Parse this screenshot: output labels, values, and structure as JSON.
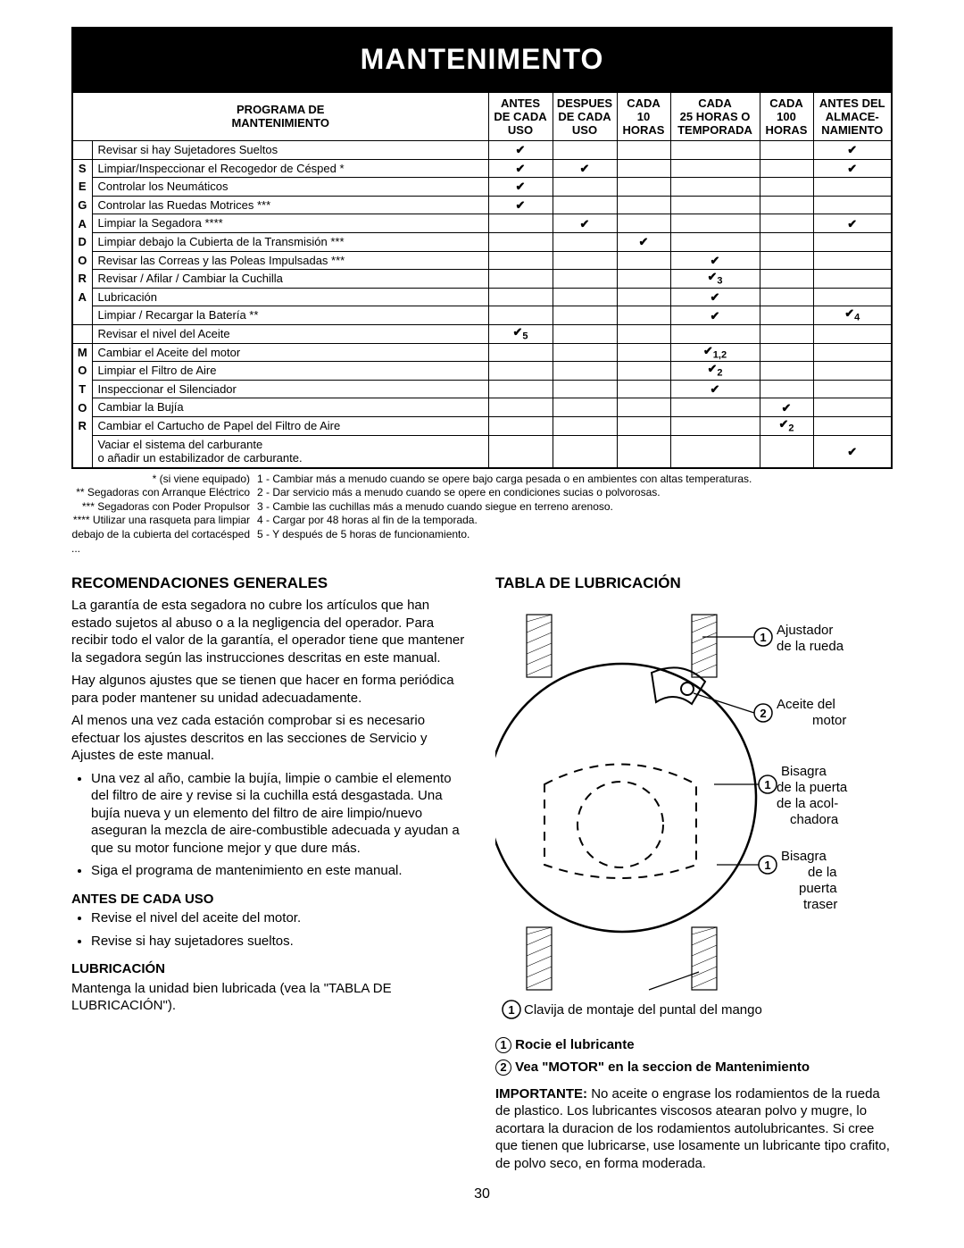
{
  "banner": "MANTENIMENTO",
  "table_title_l1": "PROGRAMA DE",
  "table_title_l2": "MANTENIMIENTO",
  "columns_hdr": [
    "ANTES\nDE CADA\nUSO",
    "DESPUES\nDE CADA\nUSO",
    "CADA\n10\nHORAS",
    "CADA\n25 HORAS O\nTEMPORADA",
    "CADA\n100\nHORAS",
    "ANTES DEL\nALMACE-\nNAMIENTO"
  ],
  "side_word1": "SEGADORA",
  "side_word2": "MOTOR",
  "rows": [
    {
      "task": "Revisar si hay Sujetadores Sueltos",
      "c": [
        1,
        0,
        0,
        0,
        0,
        1
      ]
    },
    {
      "task": "Limpiar/Inspeccionar el Recogedor de Césped *",
      "c": [
        1,
        1,
        0,
        0,
        0,
        1
      ]
    },
    {
      "task": "Controlar los Neumáticos",
      "c": [
        1,
        0,
        0,
        0,
        0,
        0
      ]
    },
    {
      "task": "Controlar las Ruedas Motrices ***",
      "c": [
        1,
        0,
        0,
        0,
        0,
        0
      ]
    },
    {
      "task": "Limpiar la Segadora ****",
      "c": [
        0,
        1,
        0,
        0,
        0,
        1
      ]
    },
    {
      "task": "Limpiar debajo la Cubierta de la Transmisión ***",
      "c": [
        0,
        0,
        1,
        0,
        0,
        0
      ]
    },
    {
      "task": "Revisar las Correas y las Poleas Impulsadas ***",
      "c": [
        0,
        0,
        0,
        1,
        0,
        0
      ]
    },
    {
      "task": "Revisar / Afilar / Cambiar la Cuchilla",
      "c": [
        0,
        0,
        0,
        "3",
        0,
        0
      ]
    },
    {
      "task": "Lubricación",
      "c": [
        0,
        0,
        0,
        1,
        0,
        0
      ]
    },
    {
      "task": "Limpiar / Recargar la Batería **",
      "c": [
        0,
        0,
        0,
        1,
        0,
        "4"
      ]
    },
    {
      "task": "Revisar el nivel del Aceite",
      "c": [
        "5",
        0,
        0,
        0,
        0,
        0
      ]
    },
    {
      "task": "Cambiar el Aceite del motor",
      "c": [
        0,
        0,
        0,
        "1,2",
        0,
        0
      ]
    },
    {
      "task": "Limpiar el Filtro de Aire",
      "c": [
        0,
        0,
        0,
        "2",
        0,
        0
      ]
    },
    {
      "task": "Inspeccionar el Silenciador",
      "c": [
        0,
        0,
        0,
        1,
        0,
        0
      ]
    },
    {
      "task": "Cambiar la Bujía",
      "c": [
        0,
        0,
        0,
        0,
        1,
        0
      ]
    },
    {
      "task": "Cambiar el Cartucho de Papel del Filtro de Aire",
      "c": [
        0,
        0,
        0,
        0,
        "2",
        0
      ]
    },
    {
      "task": "Vaciar el sistema del carburante\no añadir un estabilizador de carburante.",
      "c": [
        0,
        0,
        0,
        0,
        0,
        1
      ]
    }
  ],
  "footnotes_left": [
    "* (si viene equipado)",
    "** Segadoras con Arranque Eléctrico",
    "*** Segadoras con Poder Propulsor",
    "**** Utilizar una rasqueta para limpiar",
    "debajo de la cubierta del cortacésped"
  ],
  "footnotes_right": [
    "1 - Cambiar más a menudo cuando se opere bajo carga pesada o en ambientes con altas temperaturas.",
    "2 - Dar servicio más a menudo cuando se opere en condiciones sucias o polvorosas.",
    "3 - Cambie las cuchillas más a menudo cuando siegue en terreno arenoso.",
    "4 - Cargar por 48 horas al fin de la temporada.",
    "5 - Y después de 5 horas de funcionamiento."
  ],
  "left": {
    "h_rec": "RECOMENDACIONES GENERALES",
    "p1": "La garantía de esta segadora no cubre los artículos que han estado sujetos al abuso o a la negligencia del operador. Para recibir todo el valor de la garantía, el operador tiene que mantener la segadora según las instrucciones descritas en este manual.",
    "p2": "Hay algunos ajustes que se tienen que hacer en forma periódica para poder mantener su unidad adecuadamente.",
    "p3": "Al menos una vez cada estación comprobar si es necesario efectuar los ajustes descritos en las secciones de Servicio y Ajustes de este manual.",
    "li1": "Una vez al año, cambie la bujía, limpie o cambie el elemento del filtro de aire y revise si la cuchilla está desgastada. Una bujía nueva y un elemento del filtro de aire limpio/nuevo aseguran la mezcla de aire-combustible adecuada y ayudan a que su motor funcione mejor y que dure más.",
    "li2": "Siga el programa de mantenimiento en este manual.",
    "h_antes": "ANTES DE CADA USO",
    "antes_li1": "Revise el nivel del aceite del motor.",
    "antes_li2": "Revise si hay sujetadores sueltos.",
    "h_lub": "LUBRICACIÓN",
    "lub_p": "Mantenga la unidad bien lubricada (vea la \"TABLA DE LUBRICACIÓN\")."
  },
  "right": {
    "h_tab": "TABLA DE LUBRICACIÓN",
    "lbl1": "Ajustador de la rueda",
    "lbl2": "Aceite del motor",
    "lbl3": "Bisagra de la puerta de la acol-chadora",
    "lbl4": "Bisagra de la puerta traser",
    "lbl5": "Clavija de montaje del puntal del mango",
    "k1": "Rocie el lubricante",
    "k2": "Vea \"MOTOR\" en la seccion de Mantenimiento",
    "imp": "IMPORTANTE:",
    "imp_p": " No aceite o engrase los rodamientos de la rueda de plastico. Los lubricantes viscosos atearan polvo y mugre, lo acortara la duracion de los rodamientos autolubricantes. Si cree que tienen que lubricarse, use losamente un lubricante tipo crafito, de polvo seco, en forma moderada."
  },
  "pagenum": "30",
  "colors": {
    "black": "#000000",
    "white": "#ffffff"
  }
}
